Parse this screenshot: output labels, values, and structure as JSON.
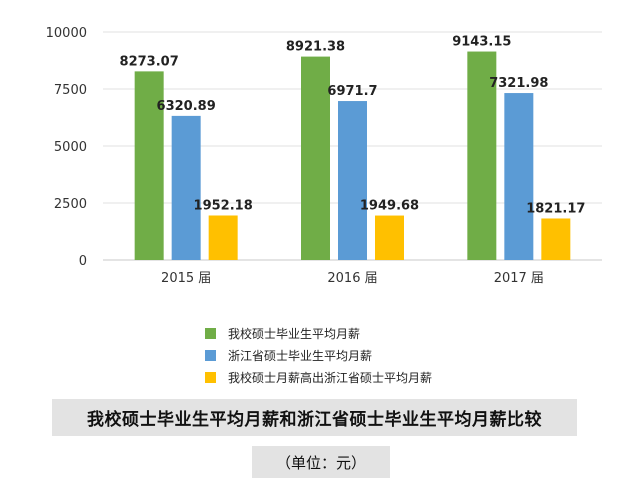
{
  "chart_data": {
    "type": "bar",
    "categories": [
      "2015 届",
      "2016 届",
      "2017 届"
    ],
    "series": [
      {
        "name": "我校硕士毕业生平均月薪",
        "values": [
          8273.07,
          8921.38,
          9143.15
        ],
        "color": "#70ad47"
      },
      {
        "name": "浙江省硕士毕业生平均月薪",
        "values": [
          6320.89,
          6971.7,
          7321.98
        ],
        "color": "#5b9bd5"
      },
      {
        "name": "我校硕士月薪高出浙江省硕士平均月薪",
        "values": [
          1952.18,
          1949.68,
          1821.17
        ],
        "color": "#ffc000"
      }
    ],
    "data_labels": [
      [
        "8273.07",
        "8921.38",
        "9143.15"
      ],
      [
        "6320.89",
        "6971.7",
        "7321.98"
      ],
      [
        "1952.18",
        "1949.68",
        "1821.17"
      ]
    ],
    "ylim": [
      0,
      10000
    ],
    "yticks": [
      0,
      2500,
      5000,
      7500,
      10000
    ],
    "ytick_labels": [
      "0",
      "2500",
      "5000",
      "7500",
      "10000"
    ],
    "grid": true,
    "legend_position": "bottom",
    "title": "我校硕士毕业生平均月薪和浙江省硕士毕业生平均月薪比较",
    "unit": "（单位：元）"
  }
}
